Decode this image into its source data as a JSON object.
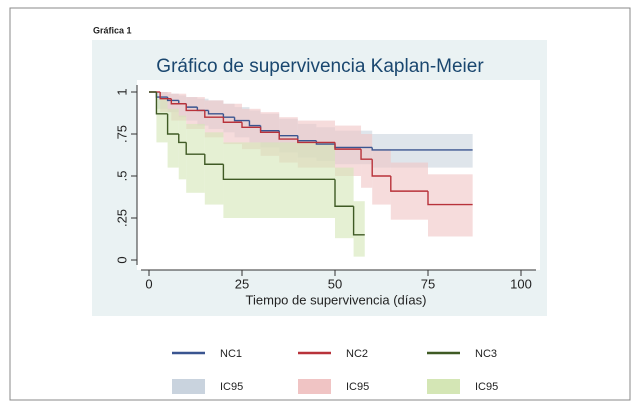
{
  "page_label": "Gráfica 1",
  "chart_data": {
    "type": "step",
    "title": "Gráfico de supervivencia Kaplan-Meier",
    "x_label": "Tiempo de supervivencia (días)",
    "xlim": [
      0,
      100
    ],
    "xticks": [
      0,
      25,
      50,
      75,
      100
    ],
    "ylim": [
      0,
      1
    ],
    "yticks": [
      0,
      {
        "value": 0.25,
        "label": ".25"
      },
      {
        "value": 0.5,
        "label": ".5"
      },
      {
        "value": 0.75,
        "label": ".75"
      },
      1
    ],
    "series": [
      {
        "name": "NC1",
        "color": "#3a5590",
        "x": [
          0,
          2,
          5,
          8,
          10,
          13,
          16,
          20,
          23,
          27,
          30,
          35,
          40,
          45,
          50,
          60,
          87
        ],
        "values": [
          1,
          0.97,
          0.95,
          0.93,
          0.91,
          0.89,
          0.87,
          0.85,
          0.83,
          0.8,
          0.77,
          0.74,
          0.71,
          0.69,
          0.67,
          0.655,
          0.655
        ],
        "ci": {
          "name": "IC95",
          "color": "#c9d3de",
          "lower": [
            1,
            0.9,
            0.88,
            0.85,
            0.83,
            0.8,
            0.78,
            0.76,
            0.73,
            0.7,
            0.67,
            0.64,
            0.61,
            0.59,
            0.57,
            0.55,
            0.55
          ],
          "upper": [
            1,
            1,
            0.99,
            0.98,
            0.97,
            0.96,
            0.95,
            0.93,
            0.91,
            0.89,
            0.87,
            0.84,
            0.81,
            0.79,
            0.77,
            0.75,
            0.75
          ]
        }
      },
      {
        "name": "NC2",
        "color": "#b8323a",
        "x": [
          0,
          3,
          6,
          10,
          15,
          20,
          25,
          30,
          35,
          40,
          50,
          57,
          60,
          65,
          75,
          87
        ],
        "values": [
          1,
          0.96,
          0.93,
          0.89,
          0.85,
          0.82,
          0.79,
          0.76,
          0.72,
          0.7,
          0.66,
          0.6,
          0.5,
          0.41,
          0.33,
          0.33
        ],
        "ci": {
          "name": "IC95",
          "color": "#f0c4c4",
          "lower": [
            1,
            0.88,
            0.83,
            0.78,
            0.73,
            0.69,
            0.66,
            0.62,
            0.58,
            0.55,
            0.5,
            0.43,
            0.33,
            0.24,
            0.14,
            0.14
          ],
          "upper": [
            1,
            1,
            0.99,
            0.97,
            0.95,
            0.93,
            0.9,
            0.88,
            0.85,
            0.83,
            0.8,
            0.75,
            0.66,
            0.58,
            0.51,
            0.51
          ]
        }
      },
      {
        "name": "NC3",
        "color": "#3f5a24",
        "x": [
          0,
          2,
          5,
          8,
          10,
          15,
          20,
          50,
          55,
          58
        ],
        "values": [
          1,
          0.87,
          0.75,
          0.7,
          0.63,
          0.57,
          0.48,
          0.32,
          0.15,
          0.15
        ],
        "ci": {
          "name": "IC95",
          "color": "#d4e6b5",
          "lower": [
            1,
            0.7,
            0.55,
            0.48,
            0.4,
            0.33,
            0.25,
            0.13,
            0.02,
            0.02
          ],
          "upper": [
            1,
            0.96,
            0.9,
            0.86,
            0.81,
            0.76,
            0.7,
            0.55,
            0.35,
            0.35
          ]
        }
      }
    ]
  }
}
